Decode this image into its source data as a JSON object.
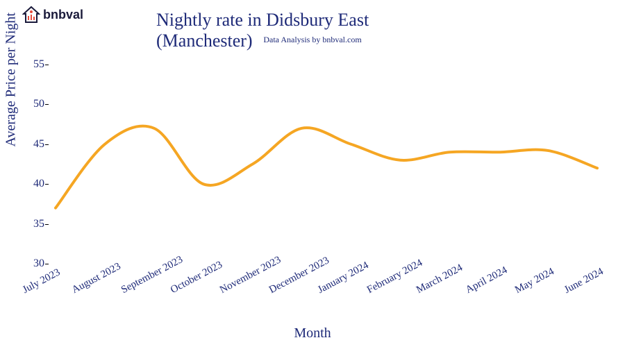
{
  "logo": {
    "brand_text": "bnbval",
    "house_color": "#1a1a3a",
    "accent_color": "#e74c3c",
    "bars_color": "#e74c3c"
  },
  "chart": {
    "type": "line",
    "title": "Nightly rate in Didsbury East (Manchester)",
    "subtitle": "Data Analysis by bnbval.com",
    "xlabel": "Month",
    "ylabel": "Average Price per Night",
    "title_color": "#1e2a78",
    "label_color": "#1e2a78",
    "title_fontsize": 26,
    "label_fontsize": 20,
    "tick_fontsize": 16,
    "subtitle_fontsize": 12,
    "line_color": "#f5a623",
    "line_width": 4,
    "background_color": "#ffffff",
    "ylim": [
      30,
      57
    ],
    "yticks": [
      30,
      35,
      40,
      45,
      50,
      55
    ],
    "x_categories": [
      "July 2023",
      "August 2023",
      "September 2023",
      "October 2023",
      "November 2023",
      "December 2023",
      "January 2024",
      "February 2024",
      "March 2024",
      "April 2024",
      "May 2024",
      "June 2024"
    ],
    "values": [
      37,
      45,
      47,
      40,
      42.5,
      47,
      45,
      43,
      44,
      44,
      44.2,
      42
    ]
  }
}
